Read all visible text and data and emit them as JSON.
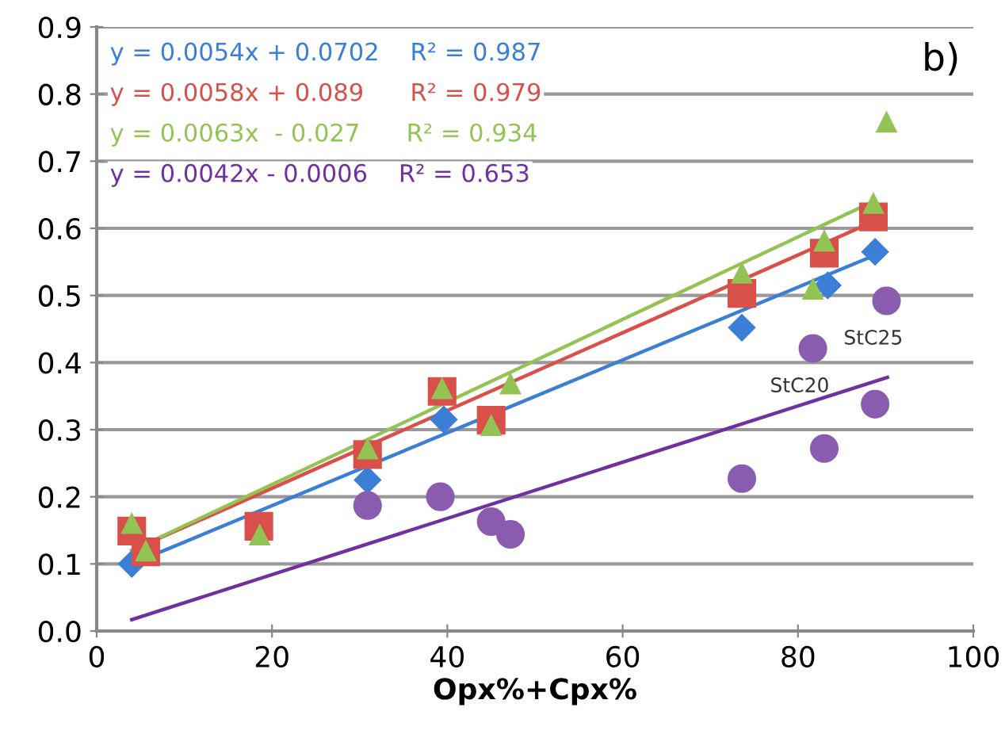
{
  "chart_data": {
    "type": "scatter",
    "xlabel": "Opx%+Cpx%",
    "xlim": [
      0,
      100
    ],
    "xticks": [
      0,
      20,
      40,
      60,
      80,
      100
    ],
    "ylim": [
      0,
      0.9
    ],
    "yticks": [
      {
        "value": 0,
        "label": "0.0"
      },
      {
        "value": 0.1,
        "label": "0.1"
      },
      {
        "value": 0.2,
        "label": "0.2"
      },
      {
        "value": 0.3,
        "label": "0.3"
      },
      {
        "value": 0.4,
        "label": "0.4"
      },
      {
        "value": 0.5,
        "label": "0.5"
      },
      {
        "value": 0.6,
        "label": "0.6"
      },
      {
        "value": 0.7,
        "label": "0.7"
      },
      {
        "value": 0.8,
        "label": "0.8"
      },
      {
        "value": 0.9,
        "label": "0.9"
      }
    ],
    "grid": "y",
    "series": [
      {
        "type": "line",
        "color": "#3a7fd5",
        "x": [
          4,
          88.8
        ],
        "values": [
          0.1,
          0.56
        ]
      },
      {
        "type": "line",
        "color": "#d9504a",
        "x": [
          4,
          88.6
        ],
        "values": [
          0.12,
          0.61
        ]
      },
      {
        "type": "line",
        "color": "#92c353",
        "x": [
          4,
          88.6
        ],
        "values": [
          0.12,
          0.64
        ]
      },
      {
        "type": "line",
        "color": "#7030a0",
        "x": [
          4,
          90.2
        ],
        "values": [
          0.017,
          0.378
        ]
      },
      {
        "marker": "diamond",
        "color": "#3a7fd5",
        "x": [
          4,
          18.6,
          30.9,
          39.6,
          73.6,
          83.4,
          88.8
        ],
        "values": [
          0.1,
          null,
          0.225,
          0.315,
          0.452,
          0.515,
          0.565
        ]
      },
      {
        "marker": "square",
        "color": "#d9504a",
        "x": [
          4,
          5.6,
          18.5,
          30.9,
          39.4,
          45.0,
          73.6,
          83.0,
          88.6
        ],
        "values": [
          0.149,
          0.118,
          0.156,
          0.263,
          0.357,
          0.314,
          0.503,
          0.563,
          0.617
        ]
      },
      {
        "marker": "triangle",
        "color": "#92c353",
        "x": [
          4,
          5.6,
          18.6,
          30.9,
          39.4,
          45.0,
          47.2,
          73.6,
          81.7,
          83.0,
          88.6,
          90.1
        ],
        "values": [
          0.161,
          0.12,
          0.144,
          0.272,
          0.362,
          0.307,
          0.369,
          0.534,
          0.51,
          0.582,
          0.638,
          0.759
        ]
      },
      {
        "marker": "circle",
        "color": "#8a5cb0",
        "x": [
          30.9,
          39.2,
          45.0,
          47.2,
          73.6,
          81.7,
          83.0,
          88.8,
          90.1
        ],
        "values": [
          0.187,
          0.2,
          0.163,
          0.144,
          0.227,
          0.421,
          0.272,
          0.338,
          0.492
        ]
      }
    ],
    "annotations": [
      "y = 0.0054x + 0.0702    R² = 0.987",
      "y = 0.0058x + 0.089      R² = 0.979",
      "y = 0.0063x  - 0.027      R² = 0.934",
      "y = 0.0042x - 0.0006    R² = 0.653",
      "b)",
      {
        "text": "StC20",
        "x": 81.7,
        "y": 0.421
      },
      {
        "text": "StC25",
        "x": 90.1,
        "y": 0.492
      }
    ]
  }
}
